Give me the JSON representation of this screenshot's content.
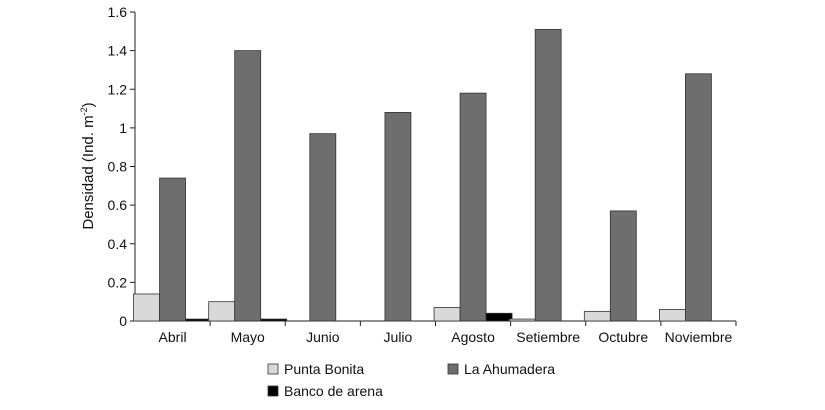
{
  "chart_data": {
    "type": "bar",
    "title": "",
    "xlabel": "",
    "ylabel": "Densidad (Ind. m",
    "ylabel_superscript": "-2",
    "ylabel_close": ")",
    "ylim": [
      0,
      1.6
    ],
    "yticks": [
      0,
      0.2,
      0.4,
      0.6,
      0.8,
      1,
      1.2,
      1.4,
      1.6
    ],
    "ytick_labels": [
      "0",
      "0.2",
      "0.4",
      "0.6",
      "0.8",
      "1",
      "1.2",
      "1.4",
      "1.6"
    ],
    "categories": [
      "Abril",
      "Mayo",
      "Junio",
      "Julio",
      "Agosto",
      "Setiembre",
      "Octubre",
      "Noviembre"
    ],
    "series": [
      {
        "name": "Punta Bonita",
        "color": "#d9d9d9",
        "values": [
          0.14,
          0.1,
          0,
          0,
          0.07,
          0.01,
          0.05,
          0.06
        ]
      },
      {
        "name": "La Ahumadera",
        "color": "#6e6e6e",
        "values": [
          0.74,
          1.4,
          0.97,
          1.08,
          1.18,
          1.51,
          0.57,
          1.28
        ]
      },
      {
        "name": "Banco de arena",
        "color": "#000000",
        "values": [
          0.01,
          0.01,
          0,
          0,
          0.04,
          0,
          0,
          0
        ]
      }
    ],
    "grid": false,
    "legend_position": "bottom"
  }
}
